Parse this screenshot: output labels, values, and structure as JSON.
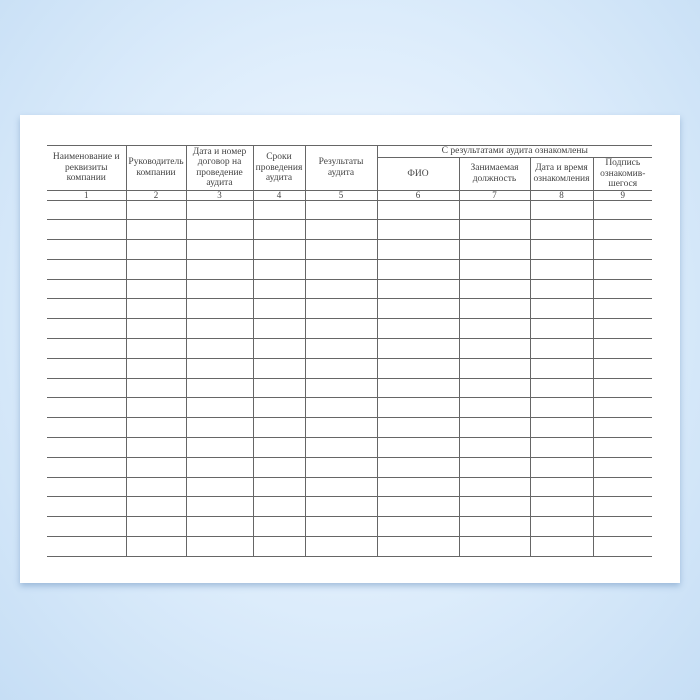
{
  "table": {
    "group_header": "С результатами аудита ознакомлены",
    "columns": [
      "Наименование и реквизиты компании",
      "Руководитель компании",
      "Дата и номер договор на проведение аудита",
      "Сроки проведения аудита",
      "Результаты аудита",
      "ФИО",
      "Занимаемая должность",
      "Дата и время ознакомления",
      "Подпись ознакомив-шегося"
    ],
    "column_numbers": [
      "1",
      "2",
      "3",
      "4",
      "5",
      "6",
      "7",
      "8",
      "9"
    ],
    "empty_rows": 18
  }
}
